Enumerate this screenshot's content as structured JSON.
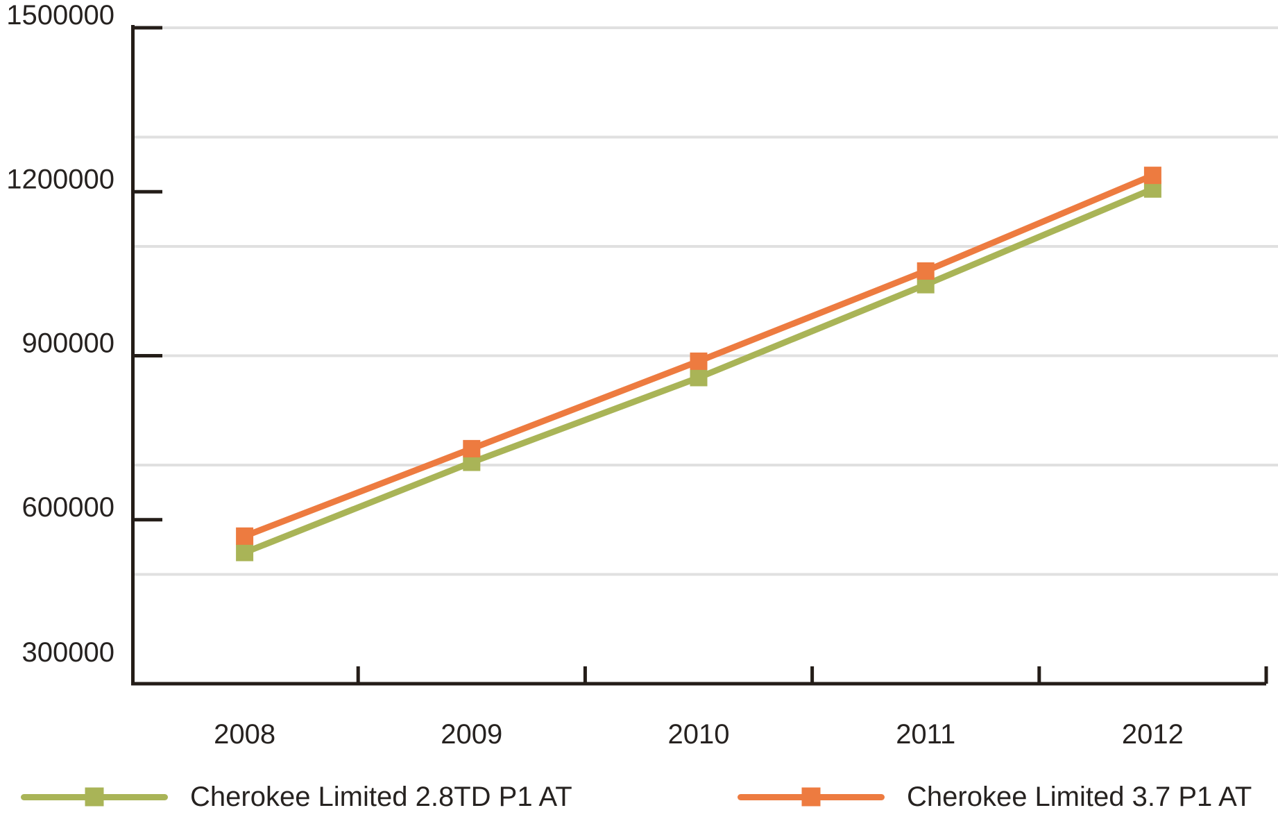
{
  "chart_data": {
    "type": "line",
    "title": "",
    "categories": [
      "2008",
      "2009",
      "2010",
      "2011",
      "2012"
    ],
    "series": [
      {
        "name": "Cherokee Limited 2.8TD P1 AT",
        "color": "#a9b457",
        "marker": "square",
        "values": [
          540000,
          705000,
          860000,
          1030000,
          1205000
        ]
      },
      {
        "name": "Cherokee Limited 3.7 P1 AT",
        "color": "#ed7b40",
        "marker": "square",
        "values": [
          570000,
          730000,
          890000,
          1055000,
          1230000
        ]
      }
    ],
    "xlabel": "",
    "ylabel": "",
    "ylim": [
      300000,
      1500000
    ],
    "y_ticks": [
      300000,
      600000,
      900000,
      1200000,
      1500000
    ],
    "y_tick_labels": [
      "300000",
      "600000",
      "900000",
      "1200000",
      "1500000"
    ],
    "gridline_values": [
      500000,
      700000,
      900000,
      1100000,
      1300000,
      1500000
    ],
    "grid": "horizontal-only",
    "legend_position": "bottom",
    "axis_color": "#241d18",
    "grid_color": "#e0e0e0",
    "label_color": "#262220"
  }
}
